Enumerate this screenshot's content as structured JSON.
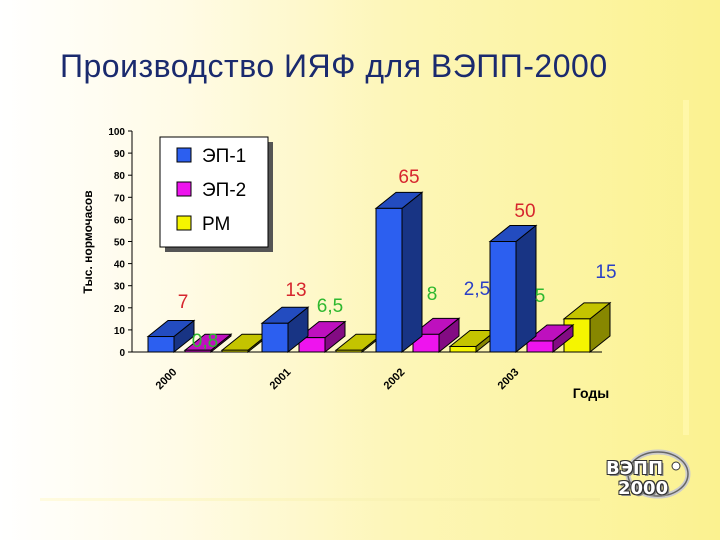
{
  "slide": {
    "title": "Производство ИЯФ для ВЭПП-2000",
    "logo_line1": "ВЭПП",
    "logo_line2": "2000"
  },
  "chart_data": {
    "type": "bar",
    "title": "",
    "ylabel": "Тыс. нормочасов",
    "xlabel": "Годы",
    "ylim": [
      0,
      100
    ],
    "yticks": [
      0,
      10,
      20,
      30,
      40,
      50,
      60,
      70,
      80,
      90,
      100
    ],
    "categories": [
      "2000",
      "2001",
      "2002",
      "2003"
    ],
    "legend_position": "top-left",
    "series": [
      {
        "name": "ЭП-1",
        "color": "#2c5ff0",
        "values": [
          7,
          13,
          65,
          50
        ],
        "labels": [
          "7",
          "13",
          "65",
          "50"
        ],
        "label_color": "#d6262e"
      },
      {
        "name": "ЭП-2",
        "color": "#ee14ee",
        "values": [
          0.8,
          6.5,
          8,
          5
        ],
        "labels": [
          "0,8",
          "6,5",
          "8",
          "5"
        ],
        "label_color": "#2fb82f"
      },
      {
        "name": "РМ",
        "color": "#f5f500",
        "values": [
          0.8,
          0.8,
          2.5,
          15
        ],
        "labels": [
          "",
          "",
          "2,5",
          "15"
        ],
        "label_color": "#2a3fc6"
      }
    ]
  }
}
